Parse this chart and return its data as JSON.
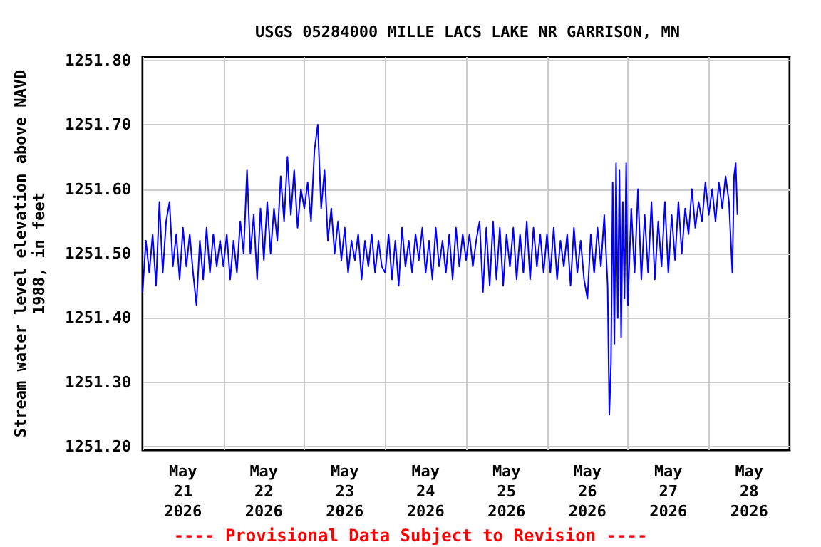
{
  "chart_data": {
    "type": "line",
    "title": "USGS 05284000 MILLE LACS LAKE NR GARRISON, MN",
    "ylabel": "Stream water level elevation above NAVD\n1988, in feet",
    "annotations": [
      "---- Provisional Data Subject to Revision ----"
    ],
    "xlim": [
      "2026-05-21T00:00",
      "2026-05-29T00:00"
    ],
    "xticks": [
      {
        "value": "2026-05-21T00:00",
        "label": null
      },
      {
        "value": "2026-05-21T12:00",
        "label": "May\n21\n2026"
      },
      {
        "value": "2026-05-22T00:00",
        "label": null
      },
      {
        "value": "2026-05-22T12:00",
        "label": "May\n22\n2026"
      },
      {
        "value": "2026-05-23T00:00",
        "label": null
      },
      {
        "value": "2026-05-23T12:00",
        "label": "May\n23\n2026"
      },
      {
        "value": "2026-05-24T00:00",
        "label": null
      },
      {
        "value": "2026-05-24T12:00",
        "label": "May\n24\n2026"
      },
      {
        "value": "2026-05-25T00:00",
        "label": null
      },
      {
        "value": "2026-05-25T12:00",
        "label": "May\n25\n2026"
      },
      {
        "value": "2026-05-26T00:00",
        "label": null
      },
      {
        "value": "2026-05-26T12:00",
        "label": "May\n26\n2026"
      },
      {
        "value": "2026-05-27T00:00",
        "label": null
      },
      {
        "value": "2026-05-27T12:00",
        "label": "May\n27\n2026"
      },
      {
        "value": "2026-05-28T00:00",
        "label": null
      },
      {
        "value": "2026-05-28T12:00",
        "label": "May\n28\n2026"
      },
      {
        "value": "2026-05-29T00:00",
        "label": null
      }
    ],
    "ylim": [
      1251.195,
      1251.805
    ],
    "yticks": [
      {
        "value": 1251.2,
        "label": "1251.20"
      },
      {
        "value": 1251.3,
        "label": "1251.30"
      },
      {
        "value": 1251.4,
        "label": "1251.40"
      },
      {
        "value": 1251.5,
        "label": "1251.50"
      },
      {
        "value": 1251.6,
        "label": "1251.60"
      },
      {
        "value": 1251.7,
        "label": "1251.70"
      },
      {
        "value": 1251.8,
        "label": "1251.80"
      }
    ],
    "grid": true,
    "marker": "none",
    "line_style": "solid",
    "series": [
      {
        "color": "#0000ff",
        "x": [
          "2026-05-21T00:00",
          "2026-05-21T01:00",
          "2026-05-21T02:00",
          "2026-05-21T03:00",
          "2026-05-21T04:00",
          "2026-05-21T05:00",
          "2026-05-21T06:00",
          "2026-05-21T07:00",
          "2026-05-21T08:00",
          "2026-05-21T09:00",
          "2026-05-21T10:00",
          "2026-05-21T11:00",
          "2026-05-21T12:00",
          "2026-05-21T13:00",
          "2026-05-21T14:00",
          "2026-05-21T15:00",
          "2026-05-21T16:00",
          "2026-05-21T17:00",
          "2026-05-21T18:00",
          "2026-05-21T19:00",
          "2026-05-21T20:00",
          "2026-05-21T21:00",
          "2026-05-21T22:00",
          "2026-05-21T23:00",
          "2026-05-22T00:00",
          "2026-05-22T01:00",
          "2026-05-22T02:00",
          "2026-05-22T03:00",
          "2026-05-22T04:00",
          "2026-05-22T05:00",
          "2026-05-22T06:00",
          "2026-05-22T07:00",
          "2026-05-22T08:00",
          "2026-05-22T09:00",
          "2026-05-22T10:00",
          "2026-05-22T11:00",
          "2026-05-22T12:00",
          "2026-05-22T13:00",
          "2026-05-22T14:00",
          "2026-05-22T15:00",
          "2026-05-22T16:00",
          "2026-05-22T17:00",
          "2026-05-22T18:00",
          "2026-05-22T19:00",
          "2026-05-22T20:00",
          "2026-05-22T21:00",
          "2026-05-22T22:00",
          "2026-05-22T23:00",
          "2026-05-23T00:00",
          "2026-05-23T01:00",
          "2026-05-23T02:00",
          "2026-05-23T03:00",
          "2026-05-23T04:00",
          "2026-05-23T05:00",
          "2026-05-23T06:00",
          "2026-05-23T07:00",
          "2026-05-23T08:00",
          "2026-05-23T09:00",
          "2026-05-23T10:00",
          "2026-05-23T11:00",
          "2026-05-23T12:00",
          "2026-05-23T13:00",
          "2026-05-23T14:00",
          "2026-05-23T15:00",
          "2026-05-23T16:00",
          "2026-05-23T17:00",
          "2026-05-23T18:00",
          "2026-05-23T19:00",
          "2026-05-23T20:00",
          "2026-05-23T21:00",
          "2026-05-23T22:00",
          "2026-05-23T23:00",
          "2026-05-24T00:00",
          "2026-05-24T01:00",
          "2026-05-24T02:00",
          "2026-05-24T03:00",
          "2026-05-24T04:00",
          "2026-05-24T05:00",
          "2026-05-24T06:00",
          "2026-05-24T07:00",
          "2026-05-24T08:00",
          "2026-05-24T09:00",
          "2026-05-24T10:00",
          "2026-05-24T11:00",
          "2026-05-24T12:00",
          "2026-05-24T13:00",
          "2026-05-24T14:00",
          "2026-05-24T15:00",
          "2026-05-24T16:00",
          "2026-05-24T17:00",
          "2026-05-24T18:00",
          "2026-05-24T19:00",
          "2026-05-24T20:00",
          "2026-05-24T21:00",
          "2026-05-24T22:00",
          "2026-05-24T23:00",
          "2026-05-25T00:00",
          "2026-05-25T01:00",
          "2026-05-25T02:00",
          "2026-05-25T03:00",
          "2026-05-25T04:00",
          "2026-05-25T05:00",
          "2026-05-25T06:00",
          "2026-05-25T07:00",
          "2026-05-25T08:00",
          "2026-05-25T09:00",
          "2026-05-25T10:00",
          "2026-05-25T11:00",
          "2026-05-25T12:00",
          "2026-05-25T13:00",
          "2026-05-25T14:00",
          "2026-05-25T15:00",
          "2026-05-25T16:00",
          "2026-05-25T17:00",
          "2026-05-25T18:00",
          "2026-05-25T19:00",
          "2026-05-25T20:00",
          "2026-05-25T21:00",
          "2026-05-25T22:00",
          "2026-05-25T23:00",
          "2026-05-26T00:00",
          "2026-05-26T01:00",
          "2026-05-26T02:00",
          "2026-05-26T03:00",
          "2026-05-26T04:00",
          "2026-05-26T05:00",
          "2026-05-26T06:00",
          "2026-05-26T07:00",
          "2026-05-26T08:00",
          "2026-05-26T09:00",
          "2026-05-26T10:00",
          "2026-05-26T11:00",
          "2026-05-26T12:00",
          "2026-05-26T13:00",
          "2026-05-26T14:00",
          "2026-05-26T15:00",
          "2026-05-26T16:00",
          "2026-05-26T17:00",
          "2026-05-26T18:00",
          "2026-05-26T18:30",
          "2026-05-26T19:00",
          "2026-05-26T19:30",
          "2026-05-26T20:00",
          "2026-05-26T20:30",
          "2026-05-26T21:00",
          "2026-05-26T21:30",
          "2026-05-26T22:00",
          "2026-05-26T22:30",
          "2026-05-26T23:00",
          "2026-05-26T23:30",
          "2026-05-27T00:00",
          "2026-05-27T01:00",
          "2026-05-27T02:00",
          "2026-05-27T03:00",
          "2026-05-27T04:00",
          "2026-05-27T05:00",
          "2026-05-27T06:00",
          "2026-05-27T07:00",
          "2026-05-27T08:00",
          "2026-05-27T09:00",
          "2026-05-27T10:00",
          "2026-05-27T11:00",
          "2026-05-27T12:00",
          "2026-05-27T13:00",
          "2026-05-27T14:00",
          "2026-05-27T15:00",
          "2026-05-27T16:00",
          "2026-05-27T17:00",
          "2026-05-27T18:00",
          "2026-05-27T19:00",
          "2026-05-27T20:00",
          "2026-05-27T21:00",
          "2026-05-27T22:00",
          "2026-05-27T23:00",
          "2026-05-28T00:00",
          "2026-05-28T01:00",
          "2026-05-28T02:00",
          "2026-05-28T03:00",
          "2026-05-28T04:00",
          "2026-05-28T05:00",
          "2026-05-28T06:00",
          "2026-05-28T07:00",
          "2026-05-28T07:30",
          "2026-05-28T08:00",
          "2026-05-28T08:30"
        ],
        "values": [
          1251.44,
          1251.52,
          1251.47,
          1251.53,
          1251.45,
          1251.58,
          1251.47,
          1251.55,
          1251.58,
          1251.48,
          1251.53,
          1251.46,
          1251.54,
          1251.48,
          1251.53,
          1251.47,
          1251.42,
          1251.52,
          1251.46,
          1251.54,
          1251.47,
          1251.53,
          1251.48,
          1251.52,
          1251.48,
          1251.53,
          1251.46,
          1251.52,
          1251.47,
          1251.55,
          1251.5,
          1251.63,
          1251.5,
          1251.56,
          1251.46,
          1251.57,
          1251.49,
          1251.58,
          1251.5,
          1251.57,
          1251.52,
          1251.62,
          1251.55,
          1251.65,
          1251.56,
          1251.63,
          1251.54,
          1251.6,
          1251.57,
          1251.61,
          1251.55,
          1251.66,
          1251.7,
          1251.57,
          1251.63,
          1251.52,
          1251.57,
          1251.5,
          1251.55,
          1251.49,
          1251.54,
          1251.47,
          1251.52,
          1251.49,
          1251.53,
          1251.46,
          1251.52,
          1251.48,
          1251.53,
          1251.47,
          1251.52,
          1251.48,
          1251.47,
          1251.53,
          1251.46,
          1251.52,
          1251.45,
          1251.54,
          1251.48,
          1251.52,
          1251.47,
          1251.53,
          1251.49,
          1251.54,
          1251.47,
          1251.52,
          1251.46,
          1251.54,
          1251.48,
          1251.52,
          1251.47,
          1251.53,
          1251.46,
          1251.54,
          1251.48,
          1251.53,
          1251.49,
          1251.53,
          1251.48,
          1251.52,
          1251.55,
          1251.44,
          1251.54,
          1251.45,
          1251.55,
          1251.46,
          1251.54,
          1251.45,
          1251.53,
          1251.48,
          1251.54,
          1251.46,
          1251.53,
          1251.47,
          1251.55,
          1251.46,
          1251.54,
          1251.48,
          1251.53,
          1251.47,
          1251.53,
          1251.47,
          1251.54,
          1251.46,
          1251.52,
          1251.48,
          1251.53,
          1251.45,
          1251.54,
          1251.47,
          1251.52,
          1251.46,
          1251.43,
          1251.53,
          1251.47,
          1251.54,
          1251.48,
          1251.56,
          1251.45,
          1251.25,
          1251.33,
          1251.61,
          1251.36,
          1251.64,
          1251.4,
          1251.63,
          1251.37,
          1251.58,
          1251.43,
          1251.64,
          1251.42,
          1251.57,
          1251.47,
          1251.6,
          1251.46,
          1251.56,
          1251.47,
          1251.58,
          1251.46,
          1251.55,
          1251.48,
          1251.58,
          1251.47,
          1251.56,
          1251.49,
          1251.58,
          1251.5,
          1251.57,
          1251.53,
          1251.6,
          1251.54,
          1251.58,
          1251.55,
          1251.61,
          1251.56,
          1251.6,
          1251.55,
          1251.61,
          1251.57,
          1251.62,
          1251.58,
          1251.47,
          1251.62,
          1251.64,
          1251.56
        ]
      }
    ]
  }
}
